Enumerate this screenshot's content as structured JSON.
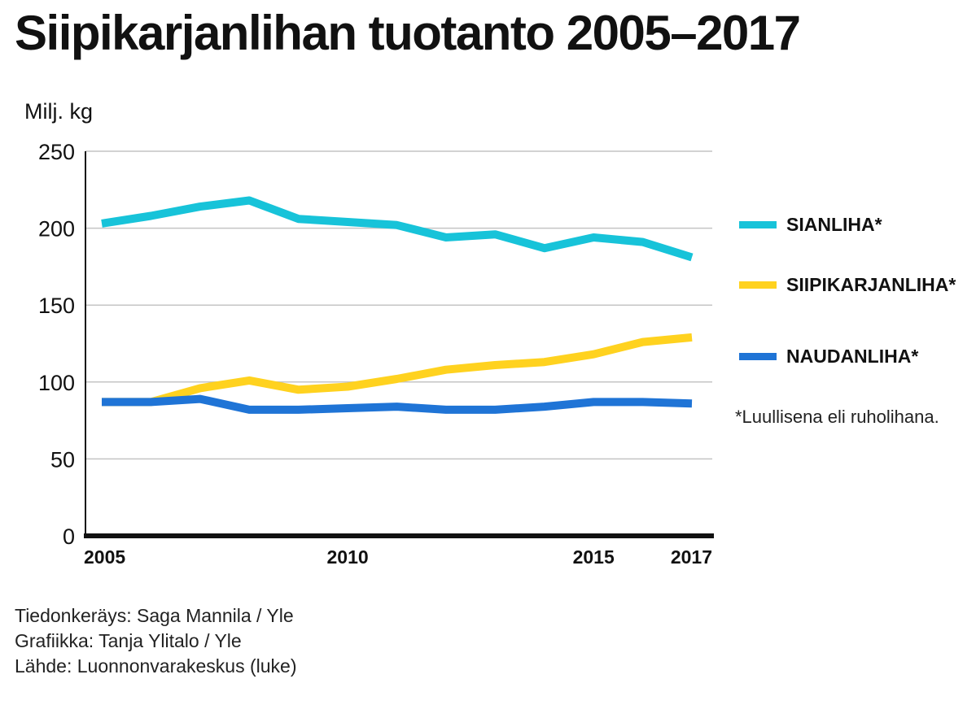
{
  "header": {
    "title": "Siipikarjanlihan tuotanto 2005–2017",
    "unit_label": "Milj. kg"
  },
  "chart_data": {
    "type": "line",
    "title": "Siipikarjanlihan tuotanto 2005–2017",
    "ylabel": "Milj. kg",
    "xlabel": "",
    "x": [
      2005,
      2006,
      2007,
      2008,
      2009,
      2010,
      2011,
      2012,
      2013,
      2014,
      2015,
      2016,
      2017
    ],
    "xlim": [
      2005,
      2017
    ],
    "ylim": [
      0,
      250
    ],
    "yticks": [
      0,
      50,
      100,
      150,
      200,
      250
    ],
    "xticks": [
      2005,
      2010,
      2015,
      2017
    ],
    "grid": true,
    "legend_position": "right",
    "series": [
      {
        "name": "SIANLIHA*",
        "color": "#17c3d9",
        "values": [
          203,
          208,
          214,
          218,
          206,
          204,
          202,
          194,
          196,
          187,
          194,
          191,
          181
        ]
      },
      {
        "name": "SIIPIKARJANLIHA*",
        "color": "#ffd21f",
        "values": [
          87,
          87,
          96,
          101,
          95,
          97,
          102,
          108,
          111,
          113,
          118,
          126,
          129
        ]
      },
      {
        "name": "NAUDANLIHA*",
        "color": "#1f74d6",
        "values": [
          87,
          87,
          89,
          82,
          82,
          83,
          84,
          82,
          82,
          84,
          87,
          87,
          86
        ]
      }
    ]
  },
  "note": "*Luullisena eli ruholihana.",
  "credits": [
    "Tiedonkeräys: Saga Mannila / Yle",
    "Grafiikka: Tanja Ylitalo / Yle",
    "Lähde: Luonnonvarakeskus (luke)"
  ]
}
